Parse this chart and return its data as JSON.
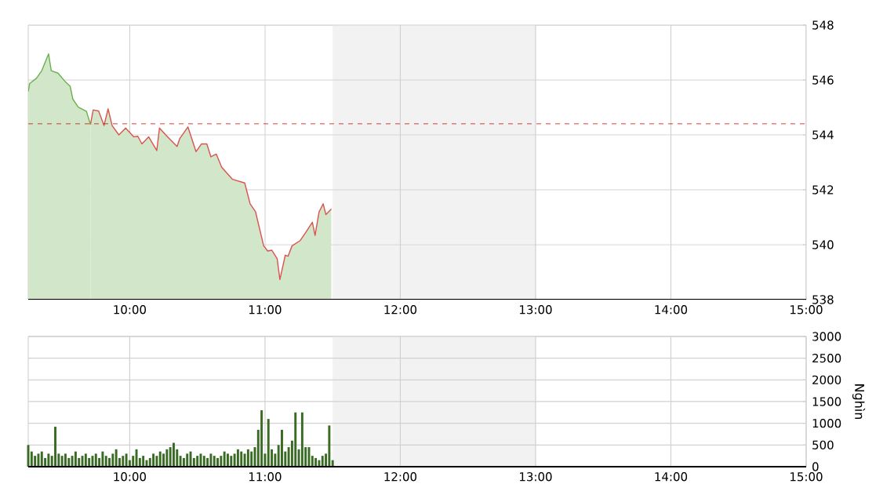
{
  "chart_data": [
    {
      "type": "area",
      "xlim": [
        9.25,
        15
      ],
      "ylim": [
        538,
        548
      ],
      "grid": true,
      "xticks": [
        {
          "value": 10,
          "label": "10:00"
        },
        {
          "value": 11,
          "label": "11:00"
        },
        {
          "value": 12,
          "label": "12:00"
        },
        {
          "value": 13,
          "label": "13:00"
        },
        {
          "value": 14,
          "label": "14:00"
        },
        {
          "value": 15,
          "label": "15:00"
        }
      ],
      "yticks": [
        538,
        540,
        542,
        544,
        546,
        548
      ],
      "ref_lines": [
        {
          "axis": "y",
          "value": 544.4,
          "color": "#cc0000",
          "line_style": "dashed"
        }
      ],
      "bands": [
        {
          "axis": "x",
          "from": 11.5,
          "to": 13,
          "color": "#f2f2f2"
        }
      ],
      "series": [
        {
          "color": "#6ab04c",
          "x": [
            9.25,
            9.26,
            9.31,
            9.35,
            9.4,
            9.42,
            9.47,
            9.52,
            9.56,
            9.58,
            9.62,
            9.68,
            9.71
          ],
          "values": [
            545.58,
            545.87,
            546.06,
            546.34,
            546.95,
            546.34,
            546.25,
            545.96,
            545.77,
            545.3,
            545.01,
            544.86,
            544.38
          ]
        },
        {
          "color": "#d9534f",
          "x": [
            9.71,
            9.73,
            9.77,
            9.81,
            9.84,
            9.87,
            9.92,
            9.97,
            10.03,
            10.06,
            10.09,
            10.14,
            10.2,
            10.22,
            10.28,
            10.35,
            10.37,
            10.43,
            10.49,
            10.53,
            10.57,
            10.6,
            10.64,
            10.68,
            10.76,
            10.85,
            10.89,
            10.93,
            10.99,
            11.02,
            11.05,
            11.09,
            11.11,
            11.15,
            11.17,
            11.2,
            11.26,
            11.3,
            11.35,
            11.37,
            11.4,
            11.43,
            11.45,
            11.49
          ],
          "values": [
            544.38,
            544.91,
            544.87,
            544.34,
            544.95,
            544.34,
            544.0,
            544.25,
            543.93,
            543.95,
            543.67,
            543.93,
            543.43,
            544.25,
            543.93,
            543.58,
            543.87,
            544.29,
            543.39,
            543.67,
            543.67,
            543.2,
            543.3,
            542.82,
            542.38,
            542.25,
            541.49,
            541.2,
            539.96,
            539.77,
            539.8,
            539.49,
            538.73,
            539.62,
            539.58,
            539.96,
            540.15,
            540.44,
            540.82,
            540.34,
            541.2,
            541.49,
            541.1,
            541.3
          ]
        }
      ]
    },
    {
      "type": "bar",
      "xlim": [
        9.25,
        15
      ],
      "ylim": [
        0,
        3000
      ],
      "grid": true,
      "ylabel": "Nghìn",
      "color": "#3a6b24",
      "xticks": [
        {
          "value": 10,
          "label": "10:00"
        },
        {
          "value": 11,
          "label": "11:00"
        },
        {
          "value": 12,
          "label": "12:00"
        },
        {
          "value": 13,
          "label": "13:00"
        },
        {
          "value": 14,
          "label": "14:00"
        },
        {
          "value": 15,
          "label": "15:00"
        }
      ],
      "yticks": [
        0,
        500,
        1000,
        1500,
        2000,
        2500,
        3000
      ],
      "bands": [
        {
          "axis": "x",
          "from": 11.5,
          "to": 13,
          "color": "#f2f2f2"
        }
      ],
      "x": [
        9.25,
        9.275,
        9.3,
        9.325,
        9.35,
        9.375,
        9.4,
        9.425,
        9.45,
        9.475,
        9.5,
        9.525,
        9.55,
        9.575,
        9.6,
        9.625,
        9.65,
        9.675,
        9.7,
        9.725,
        9.75,
        9.775,
        9.8,
        9.825,
        9.85,
        9.875,
        9.9,
        9.925,
        9.95,
        9.975,
        10.0,
        10.025,
        10.05,
        10.075,
        10.1,
        10.125,
        10.15,
        10.175,
        10.2,
        10.225,
        10.25,
        10.275,
        10.3,
        10.325,
        10.35,
        10.375,
        10.4,
        10.425,
        10.45,
        10.475,
        10.5,
        10.525,
        10.55,
        10.575,
        10.6,
        10.625,
        10.65,
        10.675,
        10.7,
        10.725,
        10.75,
        10.775,
        10.8,
        10.825,
        10.85,
        10.875,
        10.9,
        10.925,
        10.95,
        10.975,
        11.0,
        11.025,
        11.05,
        11.075,
        11.1,
        11.125,
        11.15,
        11.175,
        11.2,
        11.225,
        11.25,
        11.275,
        11.3,
        11.325,
        11.35,
        11.375,
        11.4,
        11.425,
        11.45,
        11.475,
        11.5
      ],
      "values": [
        500,
        350,
        250,
        300,
        350,
        200,
        300,
        250,
        920,
        300,
        250,
        300,
        200,
        250,
        350,
        200,
        250,
        300,
        200,
        250,
        300,
        200,
        350,
        250,
        200,
        300,
        400,
        200,
        250,
        300,
        150,
        250,
        400,
        200,
        250,
        150,
        200,
        300,
        250,
        350,
        300,
        400,
        450,
        550,
        400,
        250,
        200,
        300,
        350,
        200,
        250,
        300,
        250,
        200,
        300,
        250,
        200,
        250,
        350,
        300,
        250,
        300,
        400,
        350,
        300,
        400,
        350,
        450,
        850,
        1300,
        300,
        1100,
        400,
        300,
        500,
        850,
        350,
        450,
        600,
        1250,
        400,
        1250,
        450,
        450,
        250,
        200,
        150,
        250,
        300,
        950,
        150
      ]
    }
  ]
}
